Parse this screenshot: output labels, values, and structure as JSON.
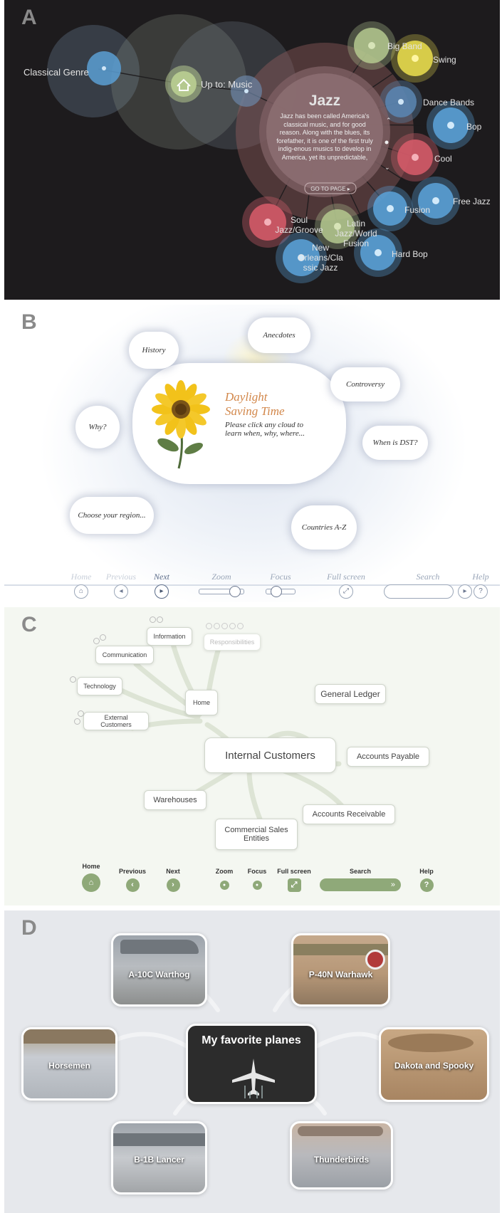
{
  "panels": {
    "a": {
      "label": "A",
      "center": {
        "title": "Jazz",
        "body": "Jazz has been called America's classical music, and for good reason. Along with the blues, its forefather, it is one of the first truly indig-enous musics to develop in America, yet its unpredictable,",
        "goto": "GO TO PAGE ▸"
      },
      "nodes": {
        "classical": "Classical Genre",
        "up": "Up to: Music",
        "big_band": "Big Band",
        "swing": "Swing",
        "dance_bands": "Dance Bands",
        "bop": "Bop",
        "cool": "Cool",
        "free_jazz": "Free Jazz",
        "fusion": "Fusion",
        "hard_bop": "Hard Bop",
        "soul_1": "Soul",
        "soul_2": "Jazz/Groove",
        "latin_1": "Latin",
        "latin_2": "Jazz/World",
        "latin_3": "Fusion",
        "neworleans_1": "New",
        "neworleans_2": "Orleans/Cla",
        "neworleans_3": "ssic Jazz"
      }
    },
    "b": {
      "label": "B",
      "title_1": "Daylight",
      "title_2": "Saving Time",
      "subtitle_1": "Please click any cloud to",
      "subtitle_2": "learn when, why, where...",
      "clouds": {
        "anecdotes": "Anecdotes",
        "history": "History",
        "controversy": "Controversy",
        "why": "Why?",
        "when": "When is DST?",
        "region": "Choose your region...",
        "countries": "Countries A-Z"
      },
      "nav": {
        "home": "Home",
        "previous": "Previous",
        "next": "Next",
        "zoom": "Zoom",
        "focus": "Focus",
        "fullscreen": "Full screen",
        "search": "Search",
        "help": "Help"
      }
    },
    "c": {
      "label": "C",
      "center": "Internal Customers",
      "nodes": {
        "information": "Information",
        "responsibilities": "Responsibilities",
        "communication": "Communication",
        "technology": "Technology",
        "external": "External Customers",
        "home": "Home",
        "ledger": "General Ledger",
        "payable": "Accounts Payable",
        "receivable": "Accounts Receivable",
        "warehouses": "Warehouses",
        "commercial_1": "Commercial Sales",
        "commercial_2": "Entities"
      },
      "nav": {
        "home": "Home",
        "previous": "Previous",
        "next": "Next",
        "zoom": "Zoom",
        "focus": "Focus",
        "fullscreen": "Full screen",
        "search": "Search",
        "help": "Help"
      }
    },
    "d": {
      "label": "D",
      "center": "My favorite planes",
      "cards": {
        "warthog": "A-10C Warthog",
        "warhawk": "P-40N Warhawk",
        "horsemen": "Horsemen",
        "dakota": "Dakota and Spooky",
        "lancer": "B-1B Lancer",
        "thunderbirds": "Thunderbirds"
      }
    }
  },
  "colors": {
    "a_bg": "#1d1b1d",
    "blue": "#5a9fd4",
    "red": "#d35a68",
    "green": "#b5c98f",
    "yellow": "#e6d94c",
    "c_accent": "#8fa979",
    "d_center": "#2c2c2c"
  }
}
